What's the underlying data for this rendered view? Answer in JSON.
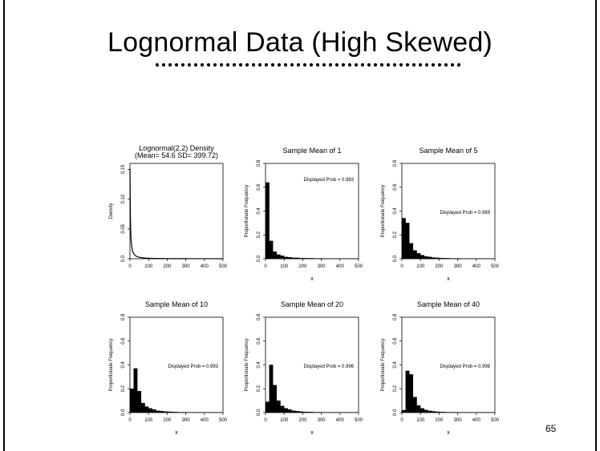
{
  "slide": {
    "title": "Lognormal Data (High Skewed)",
    "page_number": "65"
  },
  "chart_data": [
    {
      "type": "line",
      "title": "Lognormal(2,2) Density",
      "subtitle": "(Mean= 54.6 SD= 399.72)",
      "xlabel": "",
      "ylabel": "Density",
      "xlim": [
        0,
        500
      ],
      "ylim": [
        0,
        0.16
      ],
      "xticks": [
        0,
        100,
        200,
        300,
        400,
        500
      ],
      "yticks": [
        0.0,
        0.05,
        0.1,
        0.15
      ],
      "ytick_labels": [
        "0.0",
        "0.05",
        "0.10",
        "0.15"
      ],
      "grid": false,
      "curve": "lognormal",
      "mu": 2,
      "sigma": 2
    },
    {
      "type": "bar",
      "title": "Sample Mean of 1",
      "xlabel": "x",
      "ylabel": "Proportionate Frequency",
      "annotation": "Displayed Prob = 0.983",
      "xlim": [
        0,
        500
      ],
      "ylim": [
        0,
        0.8
      ],
      "xticks": [
        0,
        100,
        200,
        300,
        400,
        500
      ],
      "yticks": [
        0.0,
        0.2,
        0.4,
        0.6,
        0.8
      ],
      "ytick_labels": [
        "0.0",
        "0.2",
        "0.4",
        "0.6",
        "0.8"
      ],
      "grid": false,
      "bin_width": 20,
      "values": [
        0.64,
        0.15,
        0.06,
        0.035,
        0.025,
        0.015,
        0.012,
        0.009,
        0.008,
        0.006,
        0.005,
        0.004,
        0.004,
        0.003,
        0.003,
        0.003,
        0.002,
        0.002,
        0.002,
        0.002,
        0.002,
        0.002,
        0.002,
        0.002,
        0.002
      ]
    },
    {
      "type": "bar",
      "title": "Sample Mean of 5",
      "xlabel": "x",
      "ylabel": "Proportionate Frequency",
      "annotation": "Displayed Prob = 0.989",
      "xlim": [
        0,
        500
      ],
      "ylim": [
        0,
        0.8
      ],
      "xticks": [
        0,
        100,
        200,
        300,
        400,
        500
      ],
      "yticks": [
        0.0,
        0.2,
        0.4,
        0.6,
        0.8
      ],
      "ytick_labels": [
        "0.0",
        "0.2",
        "0.4",
        "0.6",
        "0.8"
      ],
      "grid": false,
      "bin_width": 20,
      "values": [
        0.34,
        0.3,
        0.13,
        0.07,
        0.045,
        0.03,
        0.02,
        0.015,
        0.01,
        0.008,
        0.006,
        0.005,
        0.004,
        0.003,
        0.003,
        0.003,
        0.002,
        0.002,
        0.002,
        0.002,
        0.002,
        0.002,
        0.002,
        0.002,
        0.002
      ]
    },
    {
      "type": "bar",
      "title": "Sample Mean of 10",
      "xlabel": "x",
      "ylabel": "Proportionate Frequency",
      "annotation": "Displayed Prob = 0.993",
      "xlim": [
        0,
        500
      ],
      "ylim": [
        0,
        0.8
      ],
      "xticks": [
        0,
        100,
        200,
        300,
        400,
        500
      ],
      "yticks": [
        0.0,
        0.2,
        0.4,
        0.6,
        0.8
      ],
      "ytick_labels": [
        "0.0",
        "0.2",
        "0.4",
        "0.6",
        "0.8"
      ],
      "grid": false,
      "bin_width": 20,
      "values": [
        0.2,
        0.37,
        0.18,
        0.08,
        0.05,
        0.035,
        0.025,
        0.015,
        0.012,
        0.009,
        0.007,
        0.005,
        0.004,
        0.003,
        0.003,
        0.003,
        0.002,
        0.002,
        0.002,
        0.002,
        0.002,
        0.002,
        0.002,
        0.002,
        0.002
      ]
    },
    {
      "type": "bar",
      "title": "Sample Mean of 20",
      "xlabel": "x",
      "ylabel": "Proportionate Frequency",
      "annotation": "Displayed Prob = 0.996",
      "xlim": [
        0,
        500
      ],
      "ylim": [
        0,
        0.8
      ],
      "xticks": [
        0,
        100,
        200,
        300,
        400,
        500
      ],
      "yticks": [
        0.0,
        0.2,
        0.4,
        0.6,
        0.8
      ],
      "ytick_labels": [
        "0.0",
        "0.2",
        "0.4",
        "0.6",
        "0.8"
      ],
      "grid": false,
      "bin_width": 20,
      "values": [
        0.09,
        0.4,
        0.23,
        0.1,
        0.055,
        0.035,
        0.025,
        0.016,
        0.012,
        0.009,
        0.006,
        0.005,
        0.004,
        0.003,
        0.003,
        0.002,
        0.002,
        0.002,
        0.002,
        0.002,
        0.002,
        0.002,
        0.002,
        0.002,
        0.002
      ]
    },
    {
      "type": "bar",
      "title": "Sample Mean of 40",
      "xlabel": "x",
      "ylabel": "Proportionate Frequency",
      "annotation": "Displayed Prob = 0.998",
      "xlim": [
        0,
        500
      ],
      "ylim": [
        0,
        0.8
      ],
      "xticks": [
        0,
        100,
        200,
        300,
        400,
        500
      ],
      "yticks": [
        0.0,
        0.2,
        0.4,
        0.6,
        0.8
      ],
      "ytick_labels": [
        "0.0",
        "0.2",
        "0.4",
        "0.6",
        "0.8"
      ],
      "grid": false,
      "bin_width": 20,
      "values": [
        0.02,
        0.35,
        0.32,
        0.13,
        0.06,
        0.035,
        0.022,
        0.014,
        0.01,
        0.007,
        0.005,
        0.004,
        0.003,
        0.003,
        0.002,
        0.002,
        0.002,
        0.002,
        0.002,
        0.002,
        0.002,
        0.002,
        0.002,
        0.002,
        0.002
      ]
    }
  ]
}
